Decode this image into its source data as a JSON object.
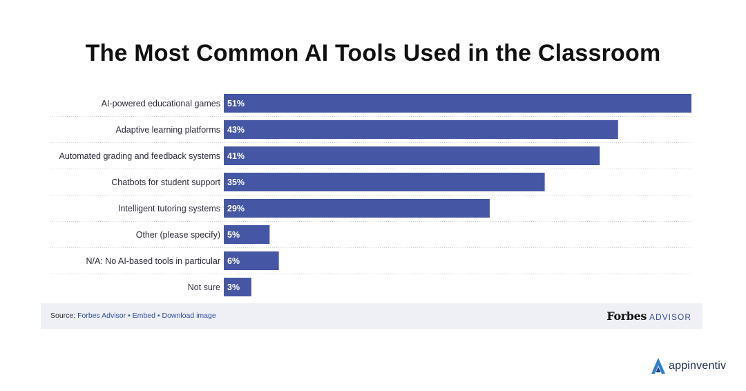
{
  "chart_data": {
    "type": "bar",
    "orientation": "horizontal",
    "title": "The Most Common AI Tools Used in the Classroom",
    "categories": [
      "AI-powered educational games",
      "Adaptive learning platforms",
      "Automated grading and feedback systems",
      "Chatbots for student support",
      "Intelligent tutoring systems",
      "Other (please specify)",
      "N/A: No AI-based tools in particular",
      "Not sure"
    ],
    "values": [
      51,
      43,
      41,
      35,
      29,
      5,
      6,
      3
    ],
    "value_labels": [
      "51%",
      "43%",
      "41%",
      "35%",
      "29%",
      "5%",
      "6%",
      "3%"
    ],
    "unit": "%",
    "xlim": [
      0,
      51
    ],
    "grid": false,
    "bar_color": "#4456a4"
  },
  "footer": {
    "source_prefix": "Source:",
    "source_link": "Forbes Advisor",
    "separator": "•",
    "embed": "Embed",
    "download": "Download image",
    "brand_name": "Forbes",
    "brand_suffix": "ADVISOR"
  },
  "watermark": {
    "text": "appinventiv",
    "logo_icon": "appinventiv-logo-icon"
  }
}
